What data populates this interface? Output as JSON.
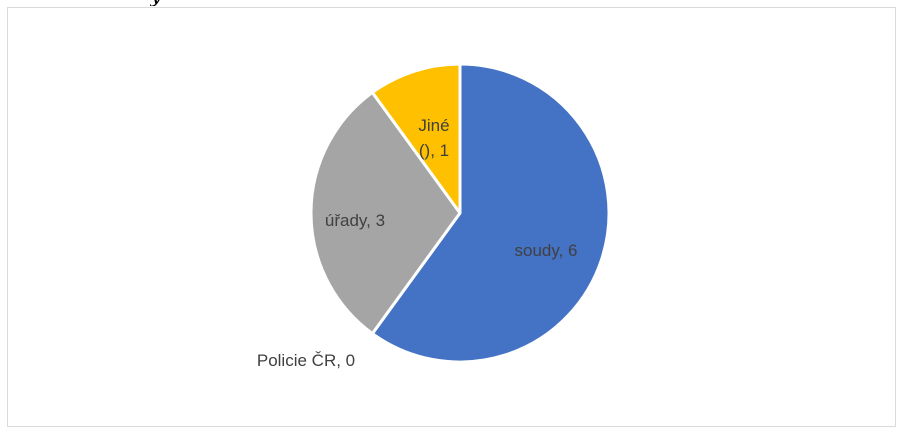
{
  "chart_data": {
    "type": "pie",
    "title": "",
    "categories": [
      "soudy",
      "Policie ČR",
      "úřady",
      "Jiné ()"
    ],
    "values": [
      6,
      0,
      3,
      1
    ],
    "labels": [
      "soudy, 6",
      "Policie ČR, 0",
      "úřady, 3",
      [
        "Jiné",
        "(), 1"
      ]
    ],
    "colors": [
      "#4472c4",
      "#ed7d31",
      "#a5a5a5",
      "#ffc000"
    ],
    "legend": "none"
  },
  "cropped_text": "y"
}
